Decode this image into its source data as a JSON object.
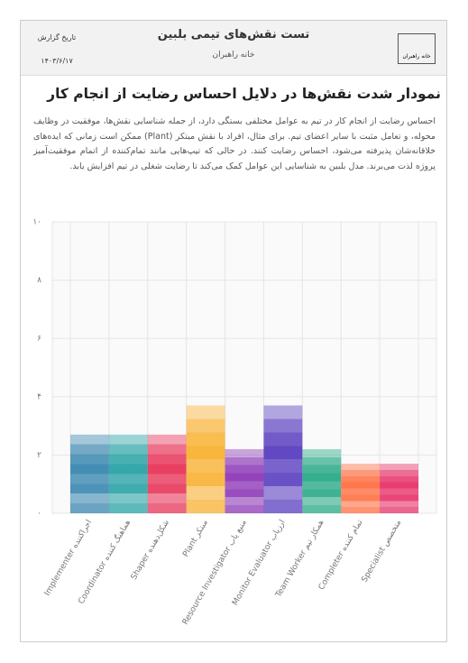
{
  "header": {
    "logo_text": "خانه راهبران",
    "title": "تست نقش‌های تیمی بلبین",
    "subtitle": "خانه راهبران",
    "date_label": "تاریخ گزارش",
    "date": "۱۴۰۳/۶/۱۷"
  },
  "section": {
    "heading": "نمودار شدت نقش‌ها در دلایل احساس رضایت از انجام کار",
    "paragraph": "احساس رضایت از انجام کار در تیم به عوامل مختلفی بستگی دارد، از جمله شناسایی نقش‌ها، موفقیت در وظایف محوله، و تعامل مثبت با سایر اعضای تیم. برای مثال، افراد با نقش مبتکر (Plant) ممکن است زمانی که ایده‌های خلاقانه‌شان پذیرفته می‌شود، احساس رضایت کنند. در حالی که تیپ‌هایی مانند تمام‌کننده از اتمام موفقیت‌آمیز پروژه لذت می‌برند. مدل بلبین به شناسایی این عوامل کمک می‌کند تا رضایت شغلی در تیم افزایش یابد."
  },
  "chart_data": {
    "type": "bar",
    "categories": [
      "Implementer اجراکننده",
      "Coordinator هماهنگ کننده",
      "Shaper شکل‌دهنده",
      "Plant مبتکر",
      "Resource Investigator منبع یاب",
      "Monitor Evaluator ارزیاب",
      "Team Worker همکار تیم",
      "Completer تمام کننده",
      "Specialist متخصص"
    ],
    "values": [
      2.7,
      2.7,
      2.7,
      3.7,
      2.2,
      3.7,
      2.2,
      1.7,
      1.7
    ],
    "colors": [
      "#3a88b0",
      "#2aa3a6",
      "#e8365a",
      "#f9b233",
      "#8e3ab8",
      "#5a3fc0",
      "#2aaa88",
      "#ff7043",
      "#e8336a"
    ],
    "ylim": [
      0,
      10
    ],
    "yticks": [
      {
        "value": 0,
        "label": "۰"
      },
      {
        "value": 2,
        "label": "۲"
      },
      {
        "value": 4,
        "label": "۴"
      },
      {
        "value": 6,
        "label": "۶"
      },
      {
        "value": 8,
        "label": "۸"
      },
      {
        "value": 10,
        "label": "۱۰"
      }
    ],
    "grid": true
  }
}
